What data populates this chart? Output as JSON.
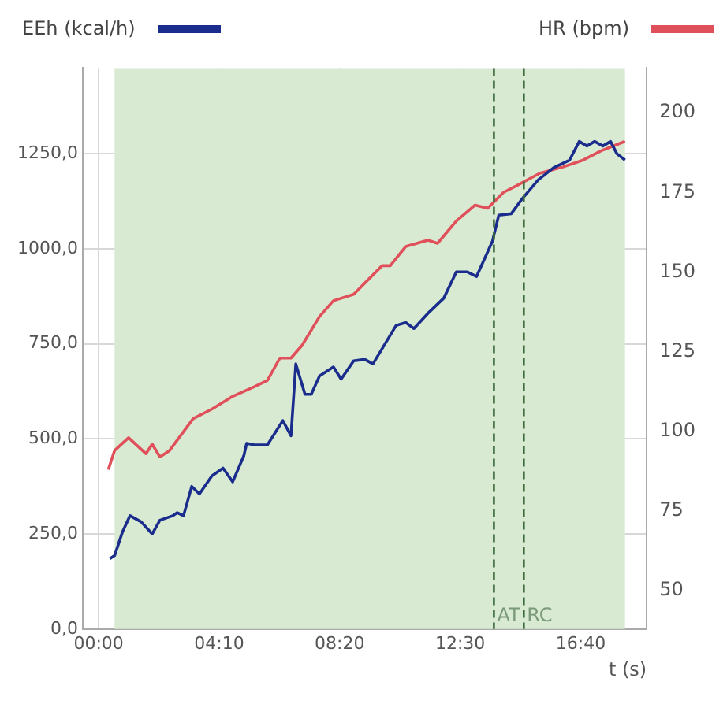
{
  "chart_data": {
    "type": "line",
    "xlabel": "t (s)",
    "legend": "top",
    "grid": true,
    "marker": "none",
    "line_style": "solid",
    "xlim": [
      -33,
      1137
    ],
    "xticks": [
      {
        "value": 0,
        "label": "00:00"
      },
      {
        "value": 250,
        "label": "04:10"
      },
      {
        "value": 500,
        "label": "08:20"
      },
      {
        "value": 750,
        "label": "12:30"
      },
      {
        "value": 1000,
        "label": "16:40"
      }
    ],
    "ylim": [
      0,
      1475
    ],
    "yticks": [
      {
        "value": 0,
        "label": "0,0"
      },
      {
        "value": 250,
        "label": "250,0"
      },
      {
        "value": 500,
        "label": "500,0"
      },
      {
        "value": 750,
        "label": "750,0"
      },
      {
        "value": 1000,
        "label": "1000,0"
      },
      {
        "value": 1250,
        "label": "1250,0"
      }
    ],
    "y2lim": [
      38,
      214
    ],
    "y2ticks": [
      50,
      75,
      100,
      125,
      150,
      175,
      200
    ],
    "bands": [
      {
        "axis": "x",
        "from": 33,
        "to": 1092,
        "color": "#d9ead3"
      }
    ],
    "ref_lines": [
      {
        "axis": "x",
        "value": 820,
        "label": "AT",
        "color": "#3d6b3d",
        "line_style": "dashed"
      },
      {
        "axis": "x",
        "value": 882,
        "label": "RC",
        "color": "#3d6b3d",
        "line_style": "dashed"
      }
    ],
    "series": [
      {
        "name": "EEh (kcal/h)",
        "color": "#1a2d8c",
        "x": [
          23,
          33,
          49,
          65,
          88,
          111,
          127,
          154,
          163,
          176,
          193,
          209,
          235,
          258,
          278,
          301,
          307,
          323,
          350,
          382,
          399,
          409,
          428,
          441,
          458,
          487,
          503,
          529,
          552,
          569,
          588,
          617,
          637,
          654,
          683,
          716,
          742,
          765,
          784,
          817,
          830,
          856,
          879,
          912,
          944,
          977,
          997,
          1013,
          1029,
          1046,
          1062,
          1075,
          1092
        ],
        "values": [
          185,
          193,
          254,
          298,
          282,
          250,
          286,
          298,
          306,
          298,
          375,
          355,
          403,
          423,
          387,
          455,
          488,
          484,
          484,
          548,
          508,
          697,
          617,
          617,
          665,
          689,
          657,
          705,
          709,
          697,
          737,
          798,
          806,
          790,
          830,
          870,
          939,
          939,
          927,
          1020,
          1088,
          1092,
          1132,
          1181,
          1213,
          1233,
          1282,
          1270,
          1282,
          1270,
          1282,
          1250,
          1233
        ]
      },
      {
        "name": "HR (bpm)",
        "color": "#e0505a",
        "axis": "y2",
        "x": [
          20,
          33,
          62,
          98,
          111,
          127,
          147,
          196,
          235,
          278,
          323,
          350,
          376,
          399,
          422,
          458,
          487,
          529,
          588,
          605,
          637,
          683,
          703,
          742,
          781,
          807,
          840,
          866,
          915,
          964,
          1003,
          1042,
          1092
        ],
        "values": [
          88,
          94,
          98,
          93,
          96,
          92,
          94,
          104,
          107,
          111,
          114,
          116,
          123,
          123,
          127,
          136,
          141,
          143,
          152,
          152,
          158,
          160,
          159,
          166,
          171,
          170,
          175,
          177,
          181,
          183,
          185,
          188,
          191
        ]
      }
    ]
  }
}
